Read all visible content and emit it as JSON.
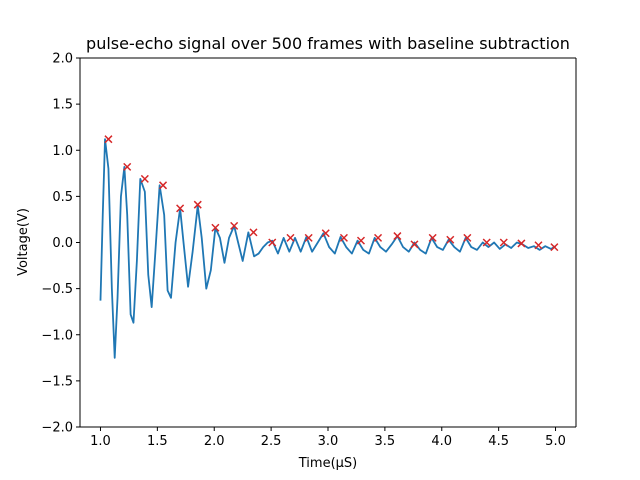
{
  "chart_data": {
    "type": "line",
    "title": "pulse-echo signal over 500 frames with baseline subtraction",
    "xlabel": "Time(µS)",
    "ylabel": "Voltage(V)",
    "xlim": [
      0.82,
      5.18
    ],
    "ylim": [
      -2.0,
      2.0
    ],
    "x_ticks": [
      1.0,
      1.5,
      2.0,
      2.5,
      3.0,
      3.5,
      4.0,
      4.5,
      5.0
    ],
    "x_tick_labels": [
      "1.0",
      "1.5",
      "2.0",
      "2.5",
      "3.0",
      "3.5",
      "4.0",
      "4.5",
      "5.0"
    ],
    "y_ticks": [
      -2.0,
      -1.5,
      -1.0,
      -0.5,
      0.0,
      0.5,
      1.0,
      1.5,
      2.0
    ],
    "y_tick_labels": [
      "−2.0",
      "−1.5",
      "−1.0",
      "−0.5",
      "0.0",
      "0.5",
      "1.0",
      "1.5",
      "2.0"
    ],
    "grid": false,
    "colors": {
      "signal": "#1f77b4",
      "peaks": "#d62728"
    },
    "series": [
      {
        "name": "signal",
        "x": [
          1.0,
          1.02,
          1.04,
          1.07,
          1.1,
          1.125,
          1.15,
          1.18,
          1.21,
          1.235,
          1.265,
          1.29,
          1.32,
          1.35,
          1.39,
          1.42,
          1.45,
          1.48,
          1.52,
          1.56,
          1.59,
          1.62,
          1.66,
          1.7,
          1.73,
          1.77,
          1.81,
          1.855,
          1.89,
          1.93,
          1.97,
          2.01,
          2.05,
          2.09,
          2.13,
          2.175,
          2.21,
          2.25,
          2.3,
          2.35,
          2.39,
          2.43,
          2.47,
          2.51,
          2.56,
          2.61,
          2.66,
          2.71,
          2.76,
          2.81,
          2.86,
          2.91,
          2.96,
          3.01,
          3.06,
          3.11,
          3.16,
          3.21,
          3.26,
          3.31,
          3.36,
          3.41,
          3.46,
          3.51,
          3.56,
          3.61,
          3.66,
          3.71,
          3.76,
          3.81,
          3.86,
          3.91,
          3.96,
          4.01,
          4.06,
          4.11,
          4.16,
          4.21,
          4.26,
          4.31,
          4.36,
          4.41,
          4.46,
          4.51,
          4.56,
          4.61,
          4.66,
          4.71,
          4.76,
          4.81,
          4.86,
          4.91,
          4.96,
          5.0
        ],
        "y": [
          -0.63,
          0.3,
          1.12,
          0.8,
          -0.5,
          -1.25,
          -0.6,
          0.5,
          0.82,
          0.3,
          -0.78,
          -0.87,
          -0.2,
          0.69,
          0.55,
          -0.35,
          -0.7,
          -0.15,
          0.62,
          0.3,
          -0.52,
          -0.6,
          0.0,
          0.37,
          0.0,
          -0.48,
          -0.1,
          0.4,
          0.05,
          -0.5,
          -0.3,
          0.16,
          0.05,
          -0.22,
          0.05,
          0.18,
          0.0,
          -0.2,
          0.11,
          -0.15,
          -0.12,
          -0.05,
          0.0,
          0.02,
          -0.12,
          0.05,
          -0.1,
          0.05,
          -0.1,
          0.06,
          -0.1,
          0.0,
          0.1,
          -0.05,
          -0.12,
          0.06,
          -0.05,
          -0.12,
          0.02,
          -0.08,
          -0.12,
          0.05,
          -0.05,
          -0.1,
          -0.02,
          0.07,
          -0.05,
          -0.1,
          0.0,
          -0.08,
          -0.12,
          0.05,
          -0.05,
          -0.08,
          0.03,
          -0.05,
          -0.1,
          0.05,
          -0.05,
          -0.08,
          0.0,
          -0.05,
          0.0,
          -0.07,
          -0.02,
          -0.06,
          0.0,
          -0.02,
          -0.06,
          -0.04,
          -0.08,
          -0.04,
          -0.07,
          -0.04
        ]
      },
      {
        "name": "peaks",
        "marker": "x",
        "x": [
          1.07,
          1.235,
          1.39,
          1.55,
          1.7,
          1.855,
          2.01,
          2.175,
          2.345,
          2.51,
          2.67,
          2.83,
          2.98,
          3.14,
          3.29,
          3.44,
          3.61,
          3.76,
          3.92,
          4.075,
          4.225,
          4.395,
          4.545,
          4.7,
          4.85,
          4.99
        ],
        "y": [
          1.12,
          0.82,
          0.69,
          0.62,
          0.37,
          0.41,
          0.16,
          0.18,
          0.11,
          0.0,
          0.05,
          0.05,
          0.1,
          0.05,
          0.02,
          0.05,
          0.07,
          -0.02,
          0.05,
          0.03,
          0.05,
          0.0,
          0.0,
          -0.01,
          -0.03,
          -0.05
        ]
      }
    ]
  }
}
